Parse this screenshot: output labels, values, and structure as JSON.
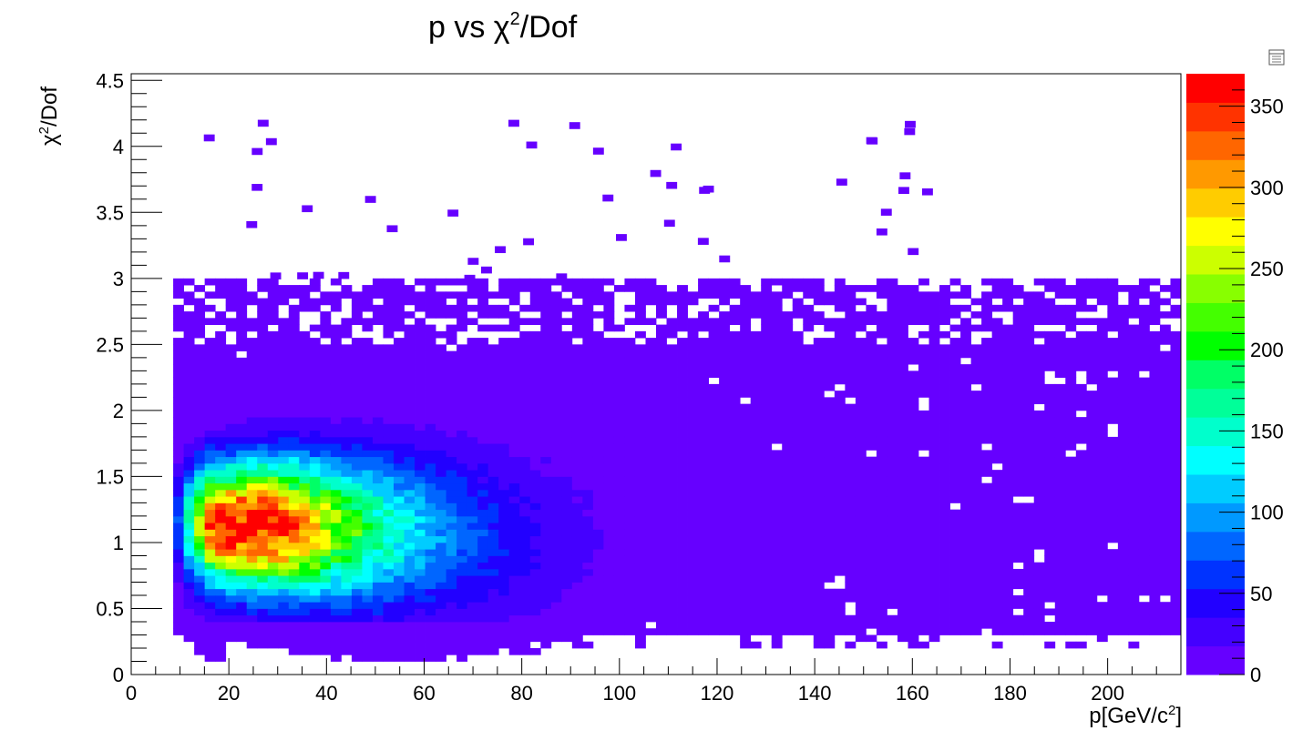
{
  "chart_data": {
    "type": "heatmap",
    "title": "p vs χ²/Dof",
    "title_parts": {
      "base": "p vs χ",
      "sup": "2",
      "tail": "/Dof"
    },
    "xlabel_parts": {
      "base": "p[GeV/c",
      "sup": "2",
      "tail": "]"
    },
    "ylabel_parts": {
      "base": "χ",
      "sup": "2",
      "tail": "/Dof"
    },
    "xlim": [
      0,
      215
    ],
    "ylim": [
      0,
      4.55
    ],
    "x_ticks": [
      "0",
      "20",
      "40",
      "60",
      "80",
      "100",
      "120",
      "140",
      "160",
      "180",
      "200"
    ],
    "y_ticks": [
      "0",
      "0.5",
      "1",
      "1.5",
      "2",
      "2.5",
      "3",
      "3.5",
      "4",
      "4.5"
    ],
    "z_range": [
      0,
      370
    ],
    "z_ticks": [
      "0",
      "50",
      "100",
      "150",
      "200",
      "250",
      "300",
      "350"
    ],
    "palette": [
      "#6600ff",
      "#4400ff",
      "#2200ff",
      "#0033ff",
      "#0066ff",
      "#0099ff",
      "#00ccff",
      "#00ffff",
      "#00ffcc",
      "#00ff99",
      "#00ff66",
      "#00ff00",
      "#44ff00",
      "#88ff00",
      "#ccff00",
      "#ffff00",
      "#ffcc00",
      "#ff9900",
      "#ff6600",
      "#ff3300",
      "#ff0000"
    ],
    "peak": {
      "x": 30,
      "y": 1.1,
      "z": 365
    },
    "grid": false,
    "stats_box": "collapsed"
  }
}
